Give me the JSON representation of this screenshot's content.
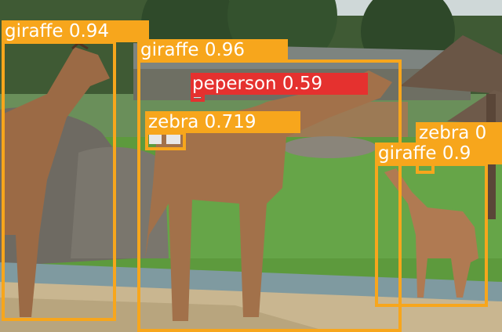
{
  "image": {
    "description_free": true,
    "colors": {
      "giraffe_box": "#f7a61c",
      "zebra_box": "#f7a61c",
      "person_box": "#e5312f",
      "label_text": "#ffffff"
    }
  },
  "detections": [
    {
      "class": "giraffe",
      "confidence": "0.94",
      "label": "giraffe 0.94"
    },
    {
      "class": "giraffe",
      "confidence": "0.96",
      "label": "giraffe 0.96"
    },
    {
      "class": "person",
      "confidence": "0.59",
      "label": "person 0.59",
      "label_prefix_glyph": "pe"
    },
    {
      "class": "zebra",
      "confidence": "0.719",
      "label": "zebra 0.719"
    },
    {
      "class": "zebra",
      "confidence": "",
      "label": "zebra 0"
    },
    {
      "class": "giraffe",
      "confidence": "",
      "label": "giraffe 0.9"
    }
  ]
}
